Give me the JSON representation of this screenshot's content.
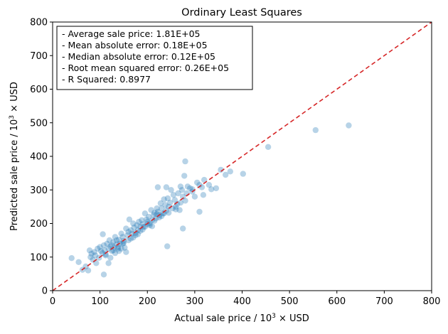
{
  "chart_data": {
    "type": "scatter",
    "title": "Ordinary Least Squares",
    "xlabel": {
      "pre": "Actual sale price / 10",
      "sup": "3",
      "post": " × USD"
    },
    "ylabel": {
      "pre": "Predicted sale price / 10",
      "sup": "3",
      "post": " × USD"
    },
    "xlim": [
      0,
      800
    ],
    "ylim": [
      0,
      800
    ],
    "xticks": [
      0,
      100,
      200,
      300,
      400,
      500,
      600,
      700,
      800
    ],
    "yticks": [
      0,
      100,
      200,
      300,
      400,
      500,
      600,
      700,
      800
    ],
    "grid": false,
    "point_color": "#1f77b4",
    "reference_line": {
      "style": "dashed",
      "color": "#d62728",
      "from": [
        0,
        0
      ],
      "to": [
        800,
        800
      ]
    },
    "stats_box": {
      "placement": "top-left",
      "lines": [
        "- Average sale price: 1.81E+05",
        "- Mean absolute error: 0.18E+05",
        "- Median absolute error: 0.12E+05",
        "- Root mean squared error: 0.26E+05",
        "- R Squared: 0.8977"
      ]
    },
    "series": [
      {
        "x": [
          40,
          55,
          63,
          70,
          75,
          78,
          80,
          82,
          85,
          88,
          90,
          92,
          95,
          98,
          100,
          102,
          105,
          106,
          108,
          110,
          112,
          115,
          118,
          120,
          122,
          125,
          128,
          130,
          132,
          135,
          138,
          140,
          142,
          145,
          148,
          150,
          152,
          155,
          158,
          160,
          162,
          165,
          168,
          170,
          172,
          175,
          178,
          180,
          182,
          185,
          188,
          190,
          192,
          195,
          198,
          200,
          203,
          205,
          208,
          210,
          213,
          215,
          218,
          220,
          222,
          225,
          228,
          230,
          233,
          235,
          238,
          240,
          243,
          245,
          248,
          250,
          253,
          255,
          258,
          260,
          263,
          265,
          268,
          270,
          273,
          275,
          278,
          280,
          283,
          285,
          290,
          295,
          300,
          305,
          310,
          315,
          318,
          320,
          330,
          335,
          345,
          355,
          365,
          375,
          402,
          455,
          555,
          625,
          108,
          242,
          222,
          275,
          310,
          240,
          155,
          118,
          125,
          135,
          145,
          112,
          128,
          138,
          148,
          165,
          175,
          185,
          195,
          205,
          215,
          225,
          235,
          245,
          140,
          132,
          122,
          150,
          160,
          170,
          180,
          190,
          200,
          210,
          220,
          230,
          260,
          270,
          280,
          295
        ],
        "y": [
          97,
          85,
          62,
          72,
          60,
          120,
          100,
          110,
          92,
          115,
          105,
          82,
          125,
          98,
          130,
          118,
          112,
          168,
          135,
          120,
          105,
          140,
          125,
          150,
          132,
          118,
          145,
          128,
          160,
          138,
          125,
          152,
          140,
          170,
          160,
          148,
          128,
          185,
          165,
          150,
          212,
          180,
          170,
          200,
          188,
          165,
          195,
          180,
          205,
          190,
          210,
          198,
          190,
          230,
          212,
          205,
          220,
          195,
          240,
          210,
          225,
          232,
          215,
          245,
          235,
          225,
          260,
          245,
          230,
          272,
          255,
          238,
          275,
          250,
          262,
          300,
          245,
          285,
          270,
          250,
          258,
          290,
          240,
          310,
          300,
          280,
          342,
          385,
          290,
          310,
          305,
          295,
          280,
          322,
          315,
          308,
          285,
          330,
          315,
          302,
          305,
          360,
          345,
          355,
          348,
          428,
          478,
          492,
          48,
          132,
          308,
          185,
          235,
          308,
          115,
          82,
          135,
          150,
          125,
          108,
          120,
          130,
          140,
          155,
          172,
          178,
          190,
          200,
          208,
          218,
          230,
          232,
          118,
          112,
          98,
          142,
          175,
          158,
          168,
          182,
          198,
          192,
          228,
          222,
          242,
          262,
          268,
          302
        ]
      }
    ]
  }
}
